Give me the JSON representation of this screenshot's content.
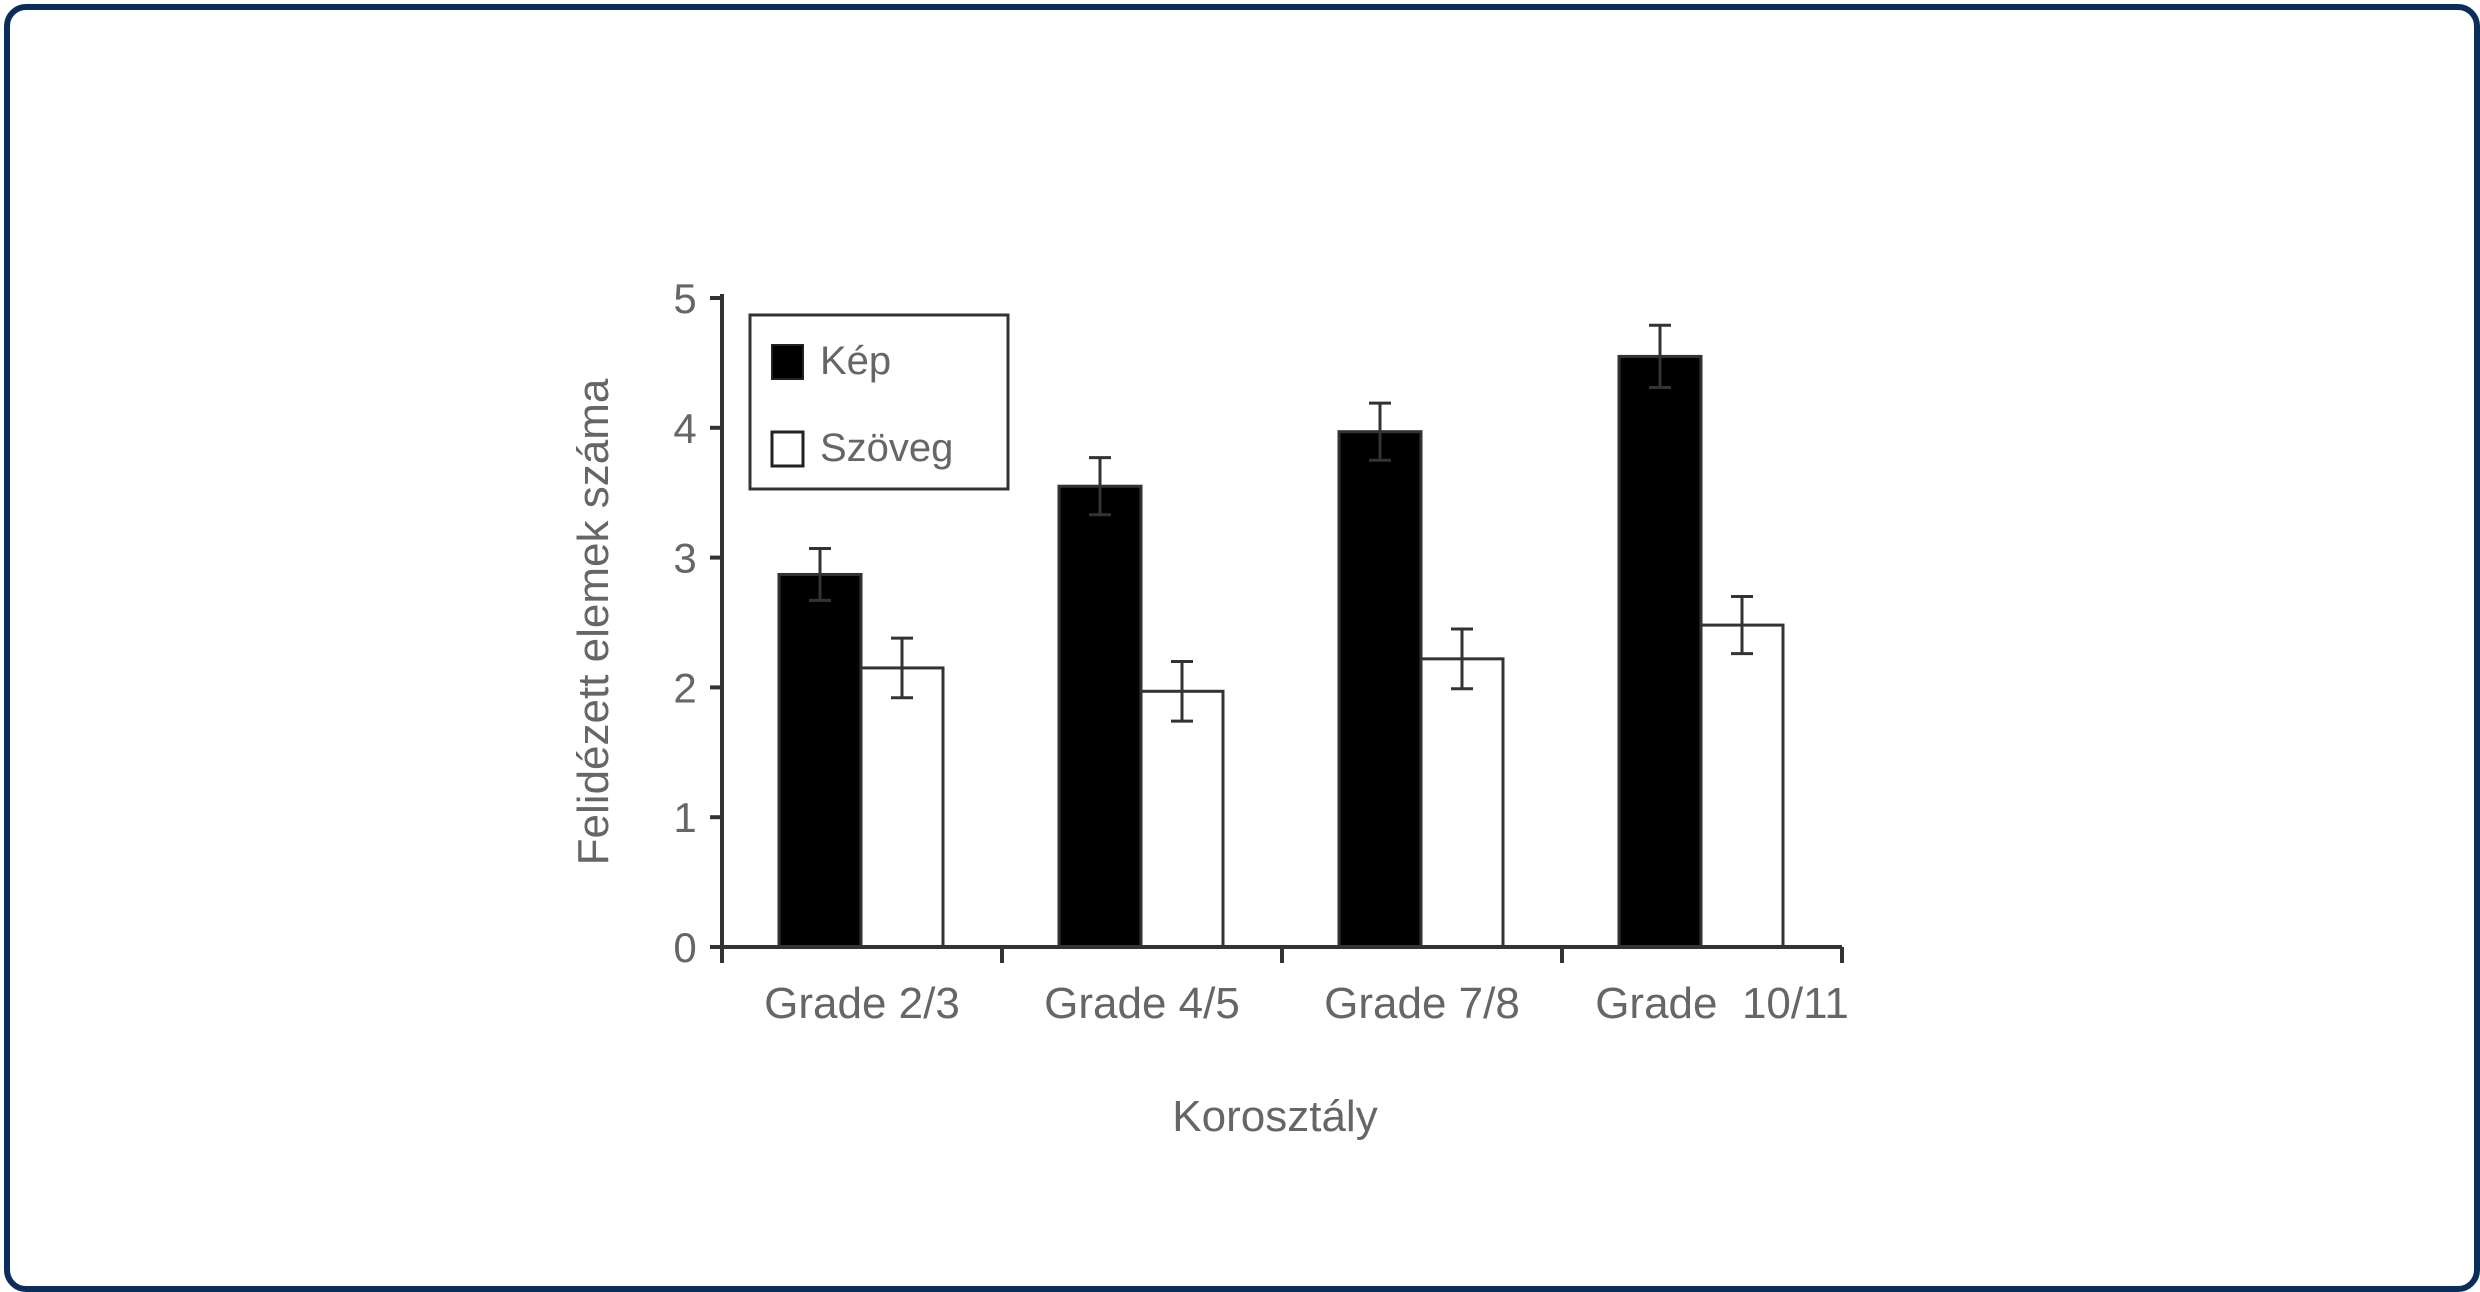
{
  "chart_data": {
    "type": "bar",
    "title": "",
    "xlabel": "Korosztály",
    "ylabel": "Felidézett elemek száma",
    "categories": [
      "Grade 2/3",
      "Grade 4/5",
      "Grade 7/8",
      "Grade  10/11"
    ],
    "ylim": [
      0,
      5
    ],
    "yticks": [
      0,
      1,
      2,
      3,
      4,
      5
    ],
    "series": [
      {
        "name": "Kép",
        "color": "#000000",
        "values": [
          2.87,
          3.55,
          3.97,
          4.55
        ],
        "errors": [
          0.2,
          0.22,
          0.22,
          0.24
        ]
      },
      {
        "name": "Szöveg",
        "color": "#ffffff",
        "values": [
          2.15,
          1.97,
          2.22,
          2.48
        ],
        "errors": [
          0.23,
          0.23,
          0.23,
          0.22
        ]
      }
    ],
    "legend_position": "top-left",
    "grid": false
  }
}
